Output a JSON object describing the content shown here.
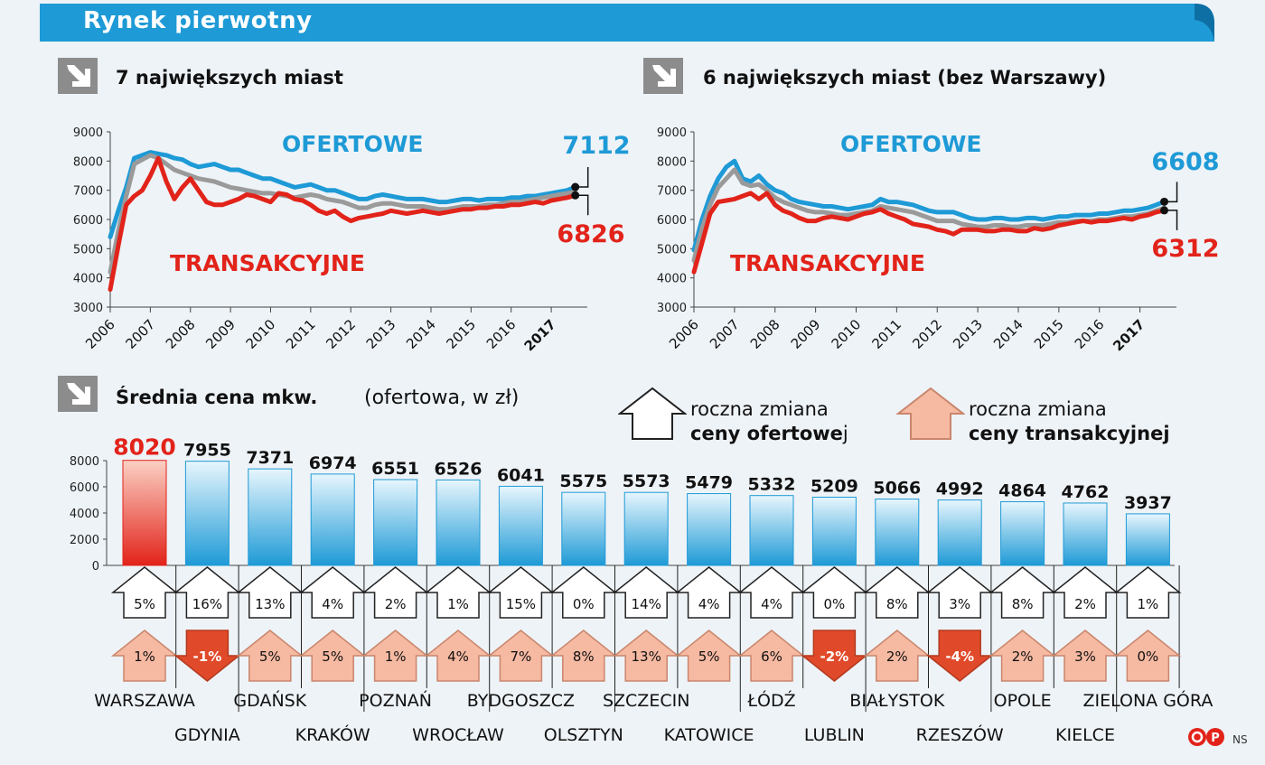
{
  "banner_title": "Rynek pierwotny",
  "colors": {
    "blue": "#1e9ad6",
    "red": "#e2231a",
    "gray": "#9a9a9a",
    "pink": "#f6b9a2",
    "dark_red": "#e04a2a"
  },
  "icons": [
    "diagonal-arrow-icon",
    "up-arrow-icon",
    "down-arrow-icon",
    "copyright-logo"
  ],
  "chart1_title": "7 największych miast",
  "chart2_title": "6 największych miast (bez Warszawy)",
  "bars_title": "Średnia cena mkw.",
  "bars_note": "(ofertowa, w zł)",
  "legend": {
    "offer_line1": "roczna zmiana",
    "offer_line2_bold": "ceny ofertowe",
    "offer_line2_rest": "j",
    "trans_line1": "roczna zmiana",
    "trans_line2_bold": "ceny transakcyjnej"
  },
  "credit": "NS",
  "chart_data": [
    {
      "type": "line",
      "title": "7 największych miast",
      "ylim": [
        3000,
        9000
      ],
      "yticks": [
        "3000",
        "4000",
        "5000",
        "6000",
        "7000",
        "8000",
        "9000"
      ],
      "xticks": [
        "2006",
        "2007",
        "2008",
        "2009",
        "2010",
        "2011",
        "2012",
        "2013",
        "2014",
        "2015",
        "2016",
        "2017"
      ],
      "xlim": [
        2006,
        2017.9
      ],
      "series": [
        {
          "name": "OFERTOWE",
          "color": "#1e9ad6",
          "end_label": "7112",
          "x": [
            2006.0,
            2006.2,
            2006.4,
            2006.6,
            2006.8,
            2007.0,
            2007.2,
            2007.4,
            2007.6,
            2007.8,
            2008.0,
            2008.2,
            2008.4,
            2008.6,
            2008.8,
            2009.0,
            2009.2,
            2009.4,
            2009.6,
            2009.8,
            2010.0,
            2010.2,
            2010.4,
            2010.6,
            2010.8,
            2011.0,
            2011.2,
            2011.4,
            2011.6,
            2011.8,
            2012.0,
            2012.2,
            2012.4,
            2012.6,
            2012.8,
            2013.0,
            2013.2,
            2013.4,
            2013.6,
            2013.8,
            2014.0,
            2014.2,
            2014.4,
            2014.6,
            2014.8,
            2015.0,
            2015.2,
            2015.4,
            2015.6,
            2015.8,
            2016.0,
            2016.2,
            2016.4,
            2016.6,
            2016.8,
            2017.0,
            2017.2,
            2017.4,
            2017.6
          ],
          "y": [
            5400,
            6300,
            7100,
            8100,
            8200,
            8300,
            8250,
            8200,
            8100,
            8050,
            7900,
            7800,
            7850,
            7900,
            7800,
            7700,
            7700,
            7600,
            7500,
            7400,
            7400,
            7300,
            7200,
            7100,
            7150,
            7200,
            7100,
            7000,
            7000,
            6900,
            6800,
            6700,
            6700,
            6800,
            6850,
            6800,
            6750,
            6700,
            6700,
            6700,
            6650,
            6600,
            6600,
            6650,
            6700,
            6700,
            6650,
            6700,
            6700,
            6700,
            6750,
            6750,
            6800,
            6800,
            6850,
            6900,
            6950,
            7000,
            7112
          ]
        },
        {
          "name": "szara",
          "color": "#9a9a9a",
          "end_label": "",
          "x": [
            2006.0,
            2006.2,
            2006.4,
            2006.6,
            2006.8,
            2007.0,
            2007.2,
            2007.4,
            2007.6,
            2007.8,
            2008.0,
            2008.2,
            2008.4,
            2008.6,
            2008.8,
            2009.0,
            2009.2,
            2009.4,
            2009.6,
            2009.8,
            2010.0,
            2010.2,
            2010.4,
            2010.6,
            2010.8,
            2011.0,
            2011.2,
            2011.4,
            2011.6,
            2011.8,
            2012.0,
            2012.2,
            2012.4,
            2012.6,
            2012.8,
            2013.0,
            2013.2,
            2013.4,
            2013.6,
            2013.8,
            2014.0,
            2014.2,
            2014.4,
            2014.6,
            2014.8,
            2015.0,
            2015.2,
            2015.4,
            2015.6,
            2015.8,
            2016.0,
            2016.2,
            2016.4,
            2016.6,
            2016.8,
            2017.0,
            2017.2,
            2017.4,
            2017.6
          ],
          "y": [
            4200,
            5600,
            6800,
            7900,
            8050,
            8200,
            8100,
            7900,
            7700,
            7600,
            7500,
            7400,
            7350,
            7300,
            7200,
            7100,
            7050,
            7000,
            6950,
            6900,
            6900,
            6850,
            6800,
            6750,
            6800,
            6850,
            6800,
            6700,
            6650,
            6600,
            6500,
            6400,
            6400,
            6500,
            6550,
            6550,
            6500,
            6450,
            6450,
            6450,
            6400,
            6350,
            6350,
            6400,
            6450,
            6450,
            6450,
            6500,
            6500,
            6550,
            6600,
            6600,
            6650,
            6700,
            6750,
            6800,
            6850,
            6900,
            6950
          ]
        },
        {
          "name": "TRANSAKCYJNE",
          "color": "#e2231a",
          "end_label": "6826",
          "x": [
            2006.0,
            2006.2,
            2006.4,
            2006.6,
            2006.8,
            2007.0,
            2007.2,
            2007.4,
            2007.6,
            2007.8,
            2008.0,
            2008.2,
            2008.4,
            2008.6,
            2008.8,
            2009.0,
            2009.2,
            2009.4,
            2009.6,
            2009.8,
            2010.0,
            2010.2,
            2010.4,
            2010.6,
            2010.8,
            2011.0,
            2011.2,
            2011.4,
            2011.6,
            2011.8,
            2012.0,
            2012.2,
            2012.4,
            2012.6,
            2012.8,
            2013.0,
            2013.2,
            2013.4,
            2013.6,
            2013.8,
            2014.0,
            2014.2,
            2014.4,
            2014.6,
            2014.8,
            2015.0,
            2015.2,
            2015.4,
            2015.6,
            2015.8,
            2016.0,
            2016.2,
            2016.4,
            2016.6,
            2016.8,
            2017.0,
            2017.2,
            2017.4,
            2017.6
          ],
          "y": [
            3600,
            5100,
            6500,
            6800,
            7000,
            7500,
            8100,
            7300,
            6700,
            7100,
            7400,
            7000,
            6600,
            6500,
            6500,
            6600,
            6700,
            6850,
            6800,
            6700,
            6600,
            6900,
            6850,
            6700,
            6650,
            6500,
            6300,
            6200,
            6300,
            6100,
            5950,
            6050,
            6100,
            6150,
            6200,
            6300,
            6250,
            6200,
            6250,
            6300,
            6250,
            6200,
            6250,
            6300,
            6350,
            6350,
            6400,
            6400,
            6450,
            6450,
            6500,
            6500,
            6550,
            6600,
            6550,
            6650,
            6700,
            6750,
            6826
          ]
        }
      ],
      "annotations": [
        "OFERTOWE",
        "TRANSAKCYJNE",
        "7112",
        "6826"
      ]
    },
    {
      "type": "line",
      "title": "6 największych miast (bez Warszawy)",
      "ylim": [
        3000,
        9000
      ],
      "yticks": [
        "3000",
        "4000",
        "5000",
        "6000",
        "7000",
        "8000",
        "9000"
      ],
      "xticks": [
        "2006",
        "2007",
        "2008",
        "2009",
        "2010",
        "2011",
        "2012",
        "2013",
        "2014",
        "2015",
        "2016",
        "2017"
      ],
      "xlim": [
        2006,
        2017.9
      ],
      "series": [
        {
          "name": "OFERTOWE",
          "color": "#1e9ad6",
          "end_label": "6608",
          "x": [
            2006.0,
            2006.2,
            2006.4,
            2006.6,
            2006.8,
            2007.0,
            2007.2,
            2007.4,
            2007.6,
            2007.8,
            2008.0,
            2008.2,
            2008.4,
            2008.6,
            2008.8,
            2009.0,
            2009.2,
            2009.4,
            2009.6,
            2009.8,
            2010.0,
            2010.2,
            2010.4,
            2010.6,
            2010.8,
            2011.0,
            2011.2,
            2011.4,
            2011.6,
            2011.8,
            2012.0,
            2012.2,
            2012.4,
            2012.6,
            2012.8,
            2013.0,
            2013.2,
            2013.4,
            2013.6,
            2013.8,
            2014.0,
            2014.2,
            2014.4,
            2014.6,
            2014.8,
            2015.0,
            2015.2,
            2015.4,
            2015.6,
            2015.8,
            2016.0,
            2016.2,
            2016.4,
            2016.6,
            2016.8,
            2017.0,
            2017.2,
            2017.4,
            2017.6
          ],
          "y": [
            4950,
            6000,
            6800,
            7400,
            7800,
            8000,
            7400,
            7300,
            7500,
            7200,
            7000,
            6900,
            6700,
            6600,
            6550,
            6500,
            6450,
            6450,
            6400,
            6350,
            6400,
            6450,
            6500,
            6700,
            6600,
            6600,
            6550,
            6500,
            6400,
            6300,
            6250,
            6250,
            6250,
            6150,
            6050,
            6000,
            6000,
            6050,
            6050,
            6000,
            6000,
            6050,
            6050,
            6000,
            6050,
            6100,
            6100,
            6150,
            6150,
            6150,
            6200,
            6200,
            6250,
            6300,
            6300,
            6350,
            6400,
            6500,
            6608
          ]
        },
        {
          "name": "szara",
          "color": "#9a9a9a",
          "end_label": "",
          "x": [
            2006.0,
            2006.2,
            2006.4,
            2006.6,
            2006.8,
            2007.0,
            2007.2,
            2007.4,
            2007.6,
            2007.8,
            2008.0,
            2008.2,
            2008.4,
            2008.6,
            2008.8,
            2009.0,
            2009.2,
            2009.4,
            2009.6,
            2009.8,
            2010.0,
            2010.2,
            2010.4,
            2010.6,
            2010.8,
            2011.0,
            2011.2,
            2011.4,
            2011.6,
            2011.8,
            2012.0,
            2012.2,
            2012.4,
            2012.6,
            2012.8,
            2013.0,
            2013.2,
            2013.4,
            2013.6,
            2013.8,
            2014.0,
            2014.2,
            2014.4,
            2014.6,
            2014.8,
            2015.0,
            2015.2,
            2015.4,
            2015.6,
            2015.8,
            2016.0,
            2016.2,
            2016.4,
            2016.6,
            2016.8,
            2017.0,
            2017.2,
            2017.4,
            2017.6
          ],
          "y": [
            4600,
            5700,
            6500,
            7100,
            7400,
            7700,
            7250,
            7150,
            7200,
            7000,
            6750,
            6600,
            6500,
            6400,
            6300,
            6250,
            6250,
            6200,
            6150,
            6150,
            6200,
            6250,
            6300,
            6450,
            6400,
            6350,
            6300,
            6250,
            6150,
            6050,
            5950,
            5950,
            5950,
            5850,
            5800,
            5750,
            5750,
            5800,
            5800,
            5750,
            5750,
            5800,
            5800,
            5800,
            5850,
            5900,
            5900,
            5950,
            5950,
            5950,
            6000,
            6000,
            6050,
            6100,
            6100,
            6150,
            6200,
            6300,
            6400
          ]
        },
        {
          "name": "TRANSAKCYJNE",
          "color": "#e2231a",
          "end_label": "6312",
          "x": [
            2006.0,
            2006.2,
            2006.4,
            2006.6,
            2006.8,
            2007.0,
            2007.2,
            2007.4,
            2007.6,
            2007.8,
            2008.0,
            2008.2,
            2008.4,
            2008.6,
            2008.8,
            2009.0,
            2009.2,
            2009.4,
            2009.6,
            2009.8,
            2010.0,
            2010.2,
            2010.4,
            2010.6,
            2010.8,
            2011.0,
            2011.2,
            2011.4,
            2011.6,
            2011.8,
            2012.0,
            2012.2,
            2012.4,
            2012.6,
            2012.8,
            2013.0,
            2013.2,
            2013.4,
            2013.6,
            2013.8,
            2014.0,
            2014.2,
            2014.4,
            2014.6,
            2014.8,
            2015.0,
            2015.2,
            2015.4,
            2015.6,
            2015.8,
            2016.0,
            2016.2,
            2016.4,
            2016.6,
            2016.8,
            2017.0,
            2017.2,
            2017.4,
            2017.6
          ],
          "y": [
            4200,
            5200,
            6200,
            6600,
            6650,
            6700,
            6800,
            6900,
            6700,
            6900,
            6500,
            6300,
            6200,
            6050,
            5950,
            5950,
            6050,
            6100,
            6050,
            6000,
            6100,
            6200,
            6250,
            6350,
            6200,
            6100,
            6000,
            5850,
            5800,
            5750,
            5650,
            5600,
            5500,
            5650,
            5650,
            5650,
            5600,
            5600,
            5650,
            5650,
            5600,
            5600,
            5700,
            5650,
            5700,
            5800,
            5850,
            5900,
            5950,
            5900,
            5950,
            5950,
            6000,
            6050,
            6000,
            6100,
            6150,
            6250,
            6312
          ]
        }
      ],
      "annotations": [
        "OFERTOWE",
        "TRANSAKCYJNE",
        "6608",
        "6312"
      ]
    },
    {
      "type": "bar",
      "title": "Średnia cena mkw.",
      "ylim": [
        0,
        8000
      ],
      "yticks": [
        "0",
        "2000",
        "4000",
        "6000",
        "8000"
      ],
      "categories": [
        "WARSZAWA",
        "GDYNIA",
        "GDAŃSK",
        "KRAKÓW",
        "POZNAŃ",
        "WROCŁAW",
        "BYDGOSZCZ",
        "OLSZTYN",
        "SZCZECIN",
        "KATOWICE",
        "ŁÓDŹ",
        "LUBLIN",
        "BIAŁYSTOK",
        "RZESZÓW",
        "OPOLE",
        "KIELCE",
        "ZIELONA GÓRA"
      ],
      "values": [
        8020,
        7955,
        7371,
        6974,
        6551,
        6526,
        6041,
        5575,
        5573,
        5479,
        5332,
        5209,
        5066,
        4992,
        4864,
        4762,
        3937
      ],
      "value_labels": [
        "8020",
        "7955",
        "7371",
        "6974",
        "6551",
        "6526",
        "6041",
        "5575",
        "5573",
        "5479",
        "5332",
        "5209",
        "5066",
        "4992",
        "4864",
        "4762",
        "3937"
      ],
      "offer_change": [
        "5%",
        "16%",
        "13%",
        "4%",
        "2%",
        "1%",
        "15%",
        "0%",
        "14%",
        "4%",
        "4%",
        "0%",
        "8%",
        "3%",
        "8%",
        "2%",
        "1%"
      ],
      "transaction_change": [
        "1%",
        "-1%",
        "5%",
        "5%",
        "1%",
        "4%",
        "7%",
        "8%",
        "13%",
        "5%",
        "6%",
        "-2%",
        "2%",
        "-4%",
        "2%",
        "3%",
        "0%"
      ]
    }
  ]
}
